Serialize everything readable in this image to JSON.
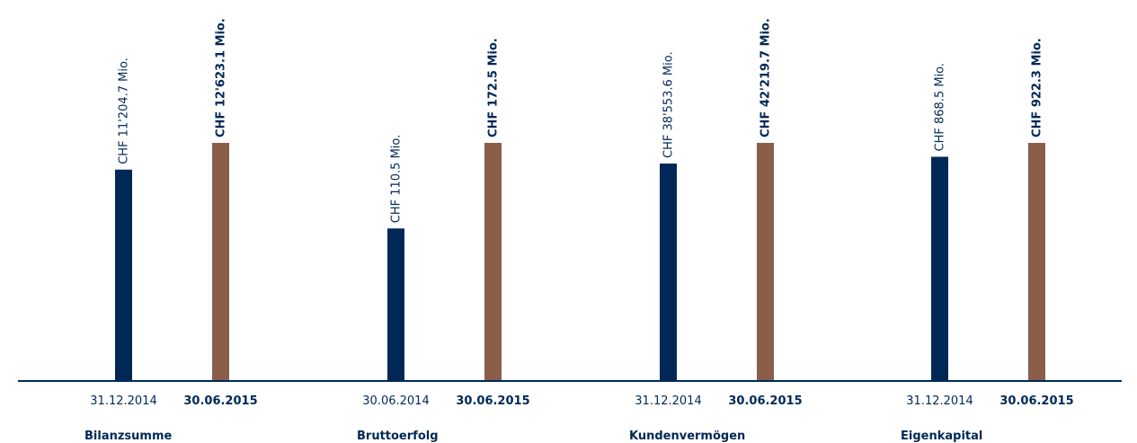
{
  "colors": {
    "prior": "#002856",
    "current": "#8B5E4A",
    "axis": "#002856",
    "text": "#002856"
  },
  "chart_data": {
    "type": "bar",
    "title": "",
    "groups": [
      {
        "name": "Bilanzsumme",
        "bars": [
          {
            "date": "31.12.2014",
            "label": "CHF 11'204.7 Mio.",
            "value": 11204.7,
            "series": "prior"
          },
          {
            "date": "30.06.2015",
            "label": "CHF 12'623.1 Mio.",
            "value": 12623.1,
            "series": "current"
          }
        ]
      },
      {
        "name": "Bruttoerfolg",
        "bars": [
          {
            "date": "30.06.2014",
            "label": "CHF 110.5 Mio.",
            "value": 110.5,
            "series": "prior"
          },
          {
            "date": "30.06.2015",
            "label": "CHF 172.5 Mio.",
            "value": 172.5,
            "series": "current"
          }
        ]
      },
      {
        "name": "Kundenvermögen",
        "bars": [
          {
            "date": "31.12.2014",
            "label": "CHF 38'553.6 Mio.",
            "value": 38553.6,
            "series": "prior"
          },
          {
            "date": "30.06.2015",
            "label": "CHF 42'219.7 Mio.",
            "value": 42219.7,
            "series": "current"
          }
        ]
      },
      {
        "name": "Eigenkapital",
        "bars": [
          {
            "date": "31.12.2014",
            "label": "CHF 868.5 Mio.",
            "value": 868.5,
            "series": "prior"
          },
          {
            "date": "30.06.2015",
            "label": "CHF 922.3 Mio.",
            "value": 922.3,
            "series": "current"
          }
        ]
      }
    ]
  }
}
